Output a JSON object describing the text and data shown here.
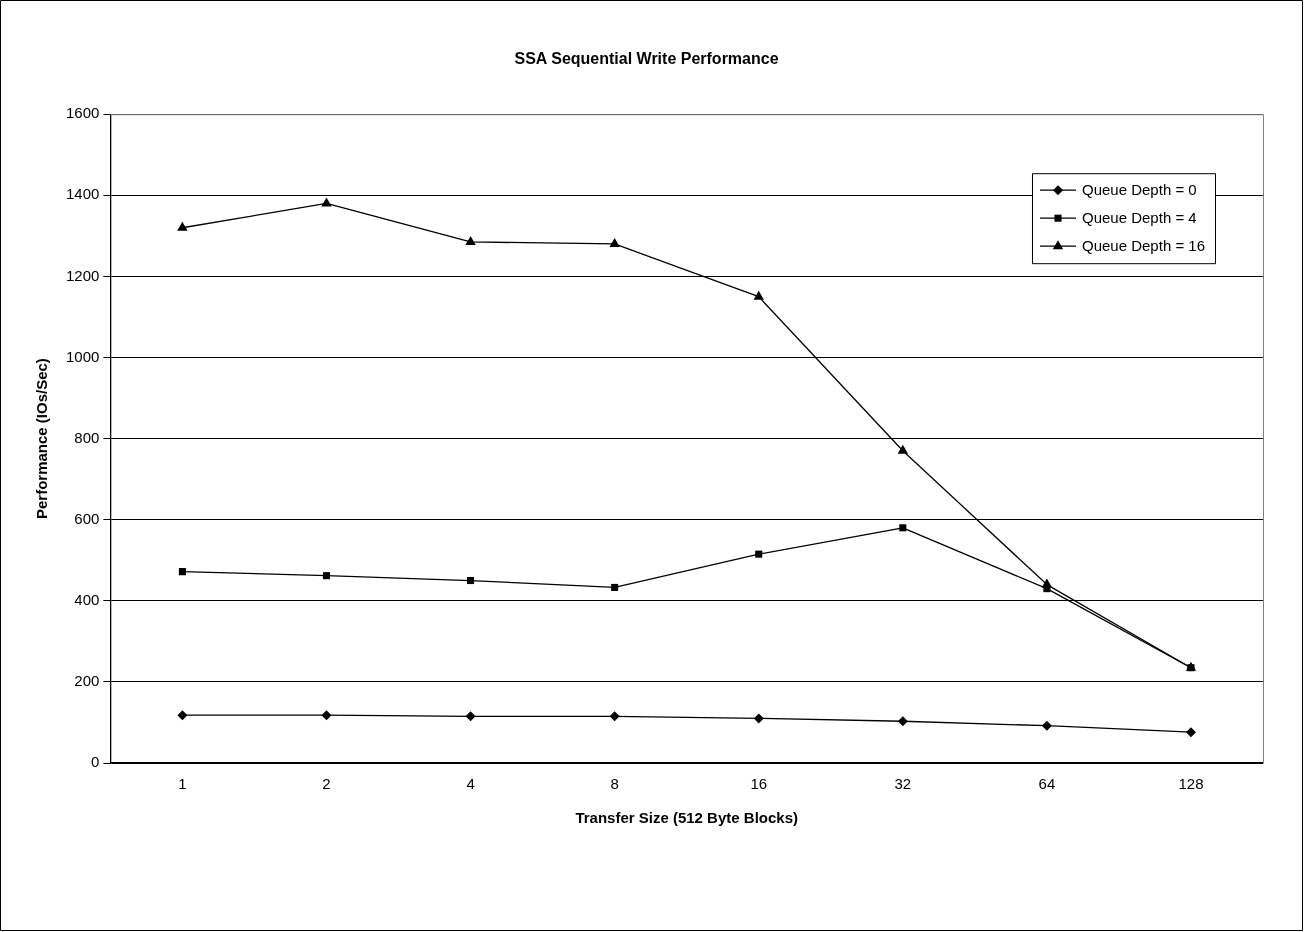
{
  "chart_data": {
    "type": "line",
    "title": "SSA Sequential Write Performance",
    "xlabel": "Transfer Size (512 Byte Blocks)",
    "ylabel": "Performance (IOs/Sec)",
    "categories": [
      "1",
      "2",
      "4",
      "8",
      "16",
      "32",
      "64",
      "128"
    ],
    "series": [
      {
        "name": "Queue Depth = 0",
        "color": "#000000",
        "marker": "diamond",
        "values": [
          118,
          118,
          115,
          115,
          110,
          103,
          92,
          76
        ]
      },
      {
        "name": "Queue Depth = 4",
        "color": "#000000",
        "marker": "square",
        "values": [
          472,
          462,
          450,
          433,
          515,
          580,
          430,
          235
        ]
      },
      {
        "name": "Queue Depth = 16",
        "color": "#000000",
        "marker": "triangle",
        "values": [
          1320,
          1380,
          1285,
          1280,
          1150,
          770,
          440,
          235
        ]
      }
    ],
    "ylim": [
      0,
      1600
    ],
    "yticks": [
      0,
      200,
      400,
      600,
      800,
      1000,
      1200,
      1400,
      1600
    ],
    "grid": "y",
    "legend": "top right",
    "line_style": "solid"
  }
}
